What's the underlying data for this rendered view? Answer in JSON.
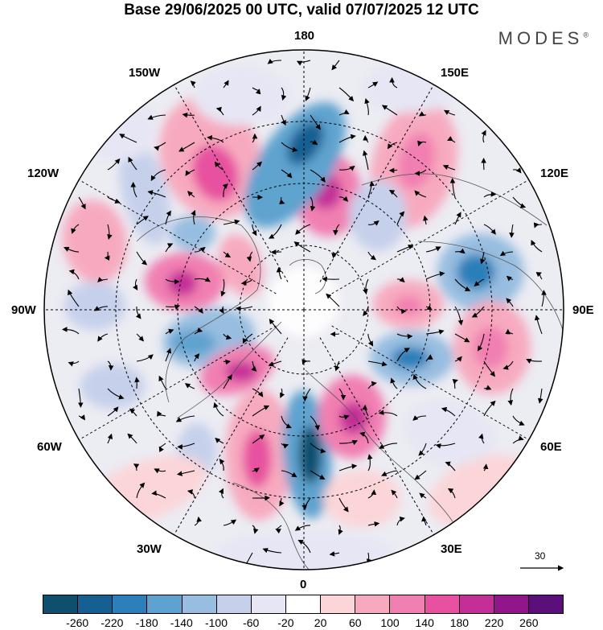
{
  "header": {
    "title": "Base 29/06/2025 00 UTC, valid 07/07/2025 12 UTC",
    "brand": "MODES",
    "brand_mark": "®"
  },
  "map": {
    "projection": "north polar stereographic",
    "longitude_labels": {
      "lon_180": "180",
      "lon_150w": "150W",
      "lon_150e": "150E",
      "lon_120w": "120W",
      "lon_120e": "120E",
      "lon_90w": "90W",
      "lon_90e": "90E",
      "lon_60w": "60W",
      "lon_60e": "60E",
      "lon_30w": "30W",
      "lon_30e": "30E",
      "lon_0": "0"
    },
    "reference_vector_label": "30"
  },
  "colorbar": {
    "labels": [
      "-260",
      "-220",
      "-180",
      "-140",
      "-100",
      "-60",
      "-20",
      "20",
      "60",
      "100",
      "140",
      "180",
      "220",
      "260"
    ],
    "colors": [
      "#0e4f6e",
      "#155f92",
      "#2c7fb8",
      "#5ea3cf",
      "#97bde0",
      "#c6d0eb",
      "#e6e6f4",
      "#ffffff",
      "#fbd5d8",
      "#f7aabf",
      "#f17fb1",
      "#e7519f",
      "#c42e97",
      "#93158a",
      "#5b1079"
    ]
  },
  "colors": {
    "background_fill": "#e8e8f0",
    "grid": "#000000"
  }
}
